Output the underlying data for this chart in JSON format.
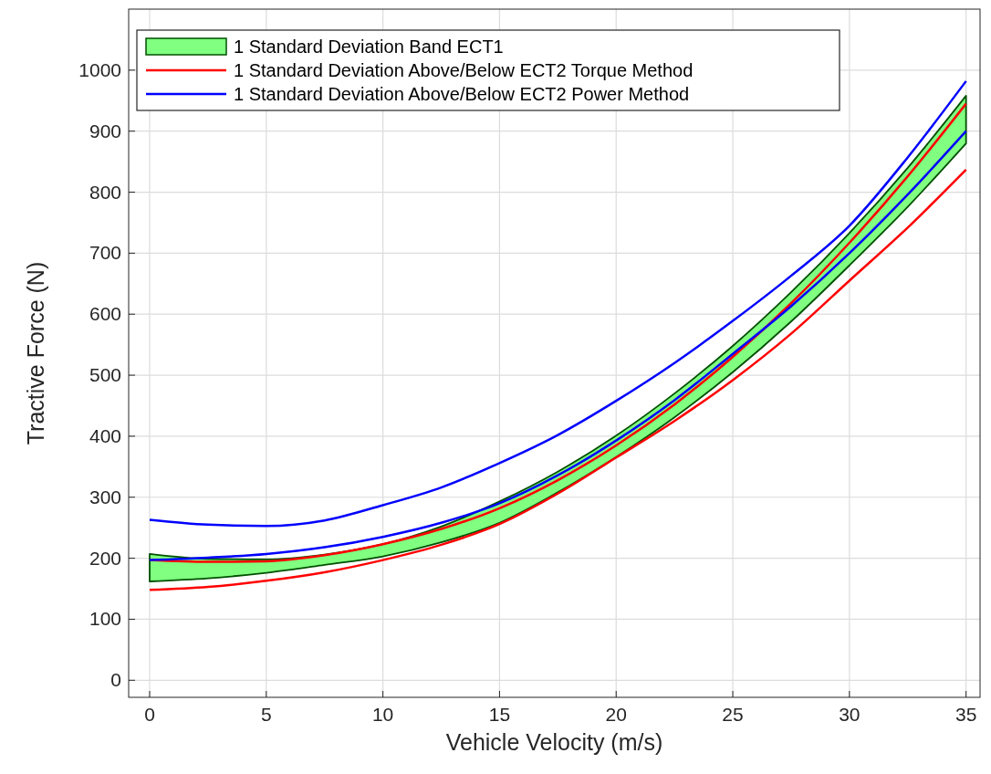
{
  "chart_data": {
    "type": "line",
    "xlabel": "Vehicle Velocity (m/s)",
    "ylabel": "Tractive Force (N)",
    "xlim": [
      -0.9,
      35.6
    ],
    "ylim": [
      -28,
      1100
    ],
    "xticks": [
      0,
      5,
      10,
      15,
      20,
      25,
      30,
      35
    ],
    "yticks": [
      0,
      100,
      200,
      300,
      400,
      500,
      600,
      700,
      800,
      900,
      1000
    ],
    "grid": true,
    "legend": "top left",
    "x": [
      0,
      2.5,
      5,
      7.5,
      10,
      12.5,
      15,
      17.5,
      20,
      22.5,
      25,
      27.5,
      30,
      32.5,
      35
    ],
    "series": [
      {
        "type": "area",
        "name": "1 Standard Deviation Band ECT1",
        "color": "#80ff80",
        "values": [
          null,
          null,
          null,
          null,
          null,
          null,
          null,
          null,
          null,
          null,
          null,
          null,
          null,
          null,
          null
        ],
        "upper": [
          207,
          199,
          198,
          206,
          223,
          252,
          293,
          342,
          401,
          470,
          548,
          636,
          733,
          840,
          958
        ],
        "lower": [
          162,
          167,
          176,
          189,
          203,
          226,
          258,
          308,
          366,
          431,
          505,
          588,
          680,
          776,
          880
        ]
      },
      {
        "name": "1 Standard Deviation Above/Below ECT2 Torque Method",
        "color": "#ff0000",
        "values": [
          197,
          194,
          195,
          205,
          223,
          248,
          282,
          328,
          385,
          452,
          530,
          618,
          717,
          826,
          945
        ]
      },
      {
        "color": "#ff0000",
        "values": [
          148,
          153,
          163,
          177,
          197,
          222,
          256,
          306,
          365,
          425,
          492,
          568,
          655,
          742,
          837
        ]
      },
      {
        "name": "1 Standard Deviation Above/Below ECT2 Power Method",
        "color": "#0000ff",
        "values": [
          197,
          201,
          207,
          218,
          235,
          258,
          290,
          336,
          393,
          459,
          535,
          613,
          700,
          796,
          900
        ]
      },
      {
        "color": "#0000ff",
        "values": [
          263,
          255,
          253,
          262,
          287,
          316,
          356,
          402,
          458,
          520,
          589,
          663,
          745,
          857,
          982
        ]
      }
    ]
  }
}
